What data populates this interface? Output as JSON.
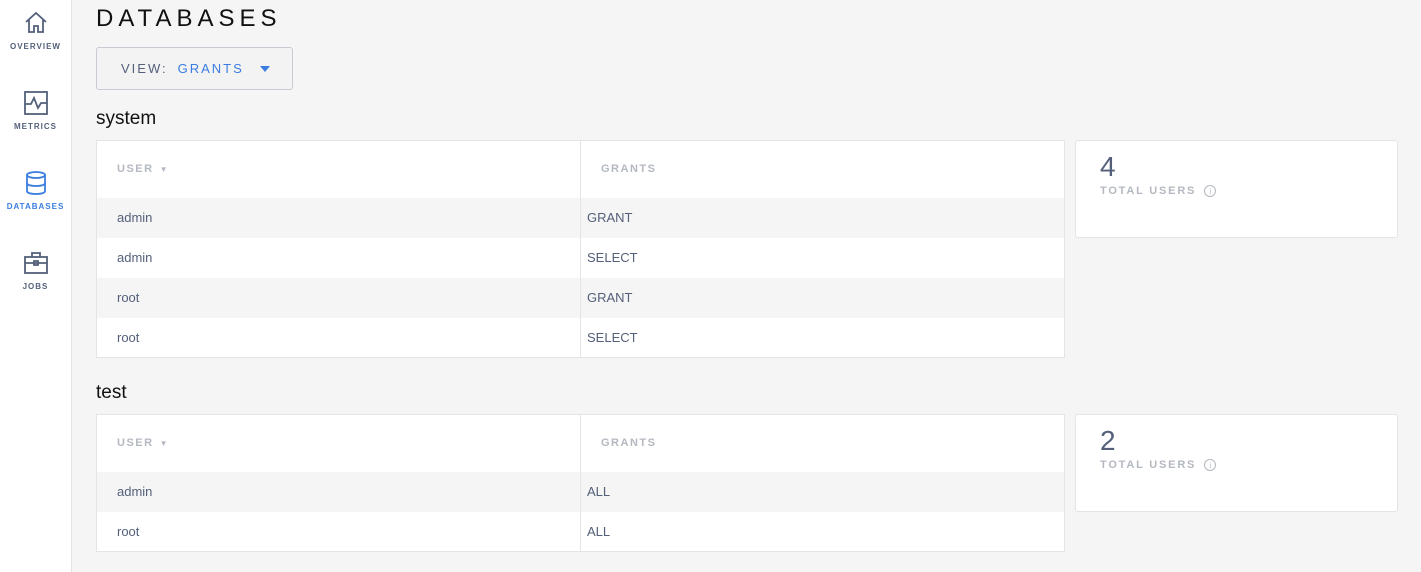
{
  "sidebar": {
    "items": [
      {
        "label": "OVERVIEW",
        "icon": "home-icon"
      },
      {
        "label": "METRICS",
        "icon": "metrics-icon"
      },
      {
        "label": "DATABASES",
        "icon": "database-icon",
        "active": true
      },
      {
        "label": "JOBS",
        "icon": "briefcase-icon"
      }
    ]
  },
  "page": {
    "title": "DATABASES",
    "view_label": "VIEW:",
    "view_value": "GRANTS"
  },
  "databases": [
    {
      "name": "system",
      "columns": [
        "USER",
        "GRANTS"
      ],
      "rows": [
        [
          "admin",
          "GRANT"
        ],
        [
          "admin",
          "SELECT"
        ],
        [
          "root",
          "GRANT"
        ],
        [
          "root",
          "SELECT"
        ]
      ],
      "total_users": "4",
      "total_users_label": "TOTAL USERS"
    },
    {
      "name": "test",
      "columns": [
        "USER",
        "GRANTS"
      ],
      "rows": [
        [
          "admin",
          "ALL"
        ],
        [
          "root",
          "ALL"
        ]
      ],
      "total_users": "2",
      "total_users_label": "TOTAL USERS"
    }
  ],
  "colors": {
    "accent": "#3a7de1",
    "text": "#54607a"
  }
}
